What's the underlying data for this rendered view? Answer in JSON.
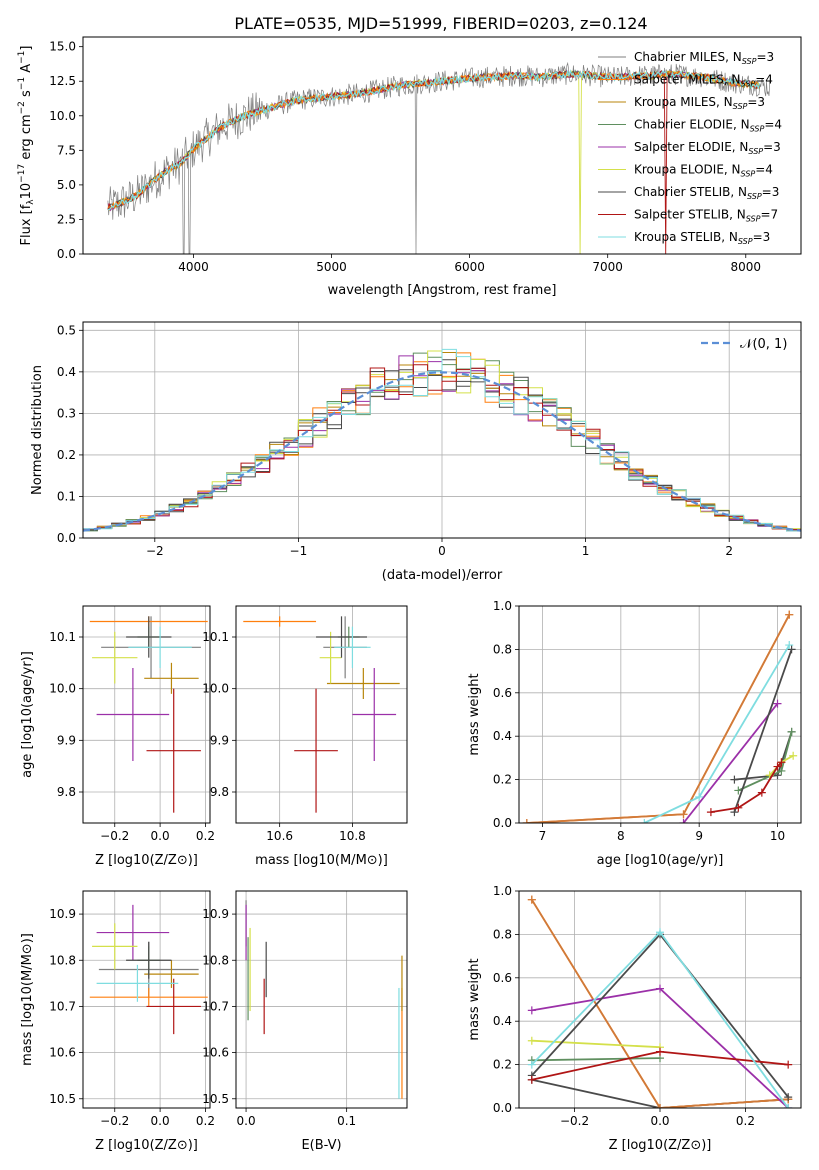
{
  "figure_title": "PLATE=0535, MJD=51999, FIBERID=0203, z=0.124",
  "models": [
    {
      "name": "Chabrier MILES",
      "nssp": "3",
      "color": "#7f7f7f"
    },
    {
      "name": "Salpeter MILES",
      "nssp": "4",
      "color": "#ff7f0e"
    },
    {
      "name": "Kroupa MILES",
      "nssp": "3",
      "color": "#b8860b"
    },
    {
      "name": "Chabrier ELODIE",
      "nssp": "4",
      "color": "#5f8f5f"
    },
    {
      "name": "Salpeter ELODIE",
      "nssp": "3",
      "color": "#9b30a8"
    },
    {
      "name": "Kroupa ELODIE",
      "nssp": "4",
      "color": "#d4e04a"
    },
    {
      "name": "Chabrier STELIB",
      "nssp": "3",
      "color": "#4a4a4a"
    },
    {
      "name": "Salpeter STELIB",
      "nssp": "7",
      "color": "#b01515"
    },
    {
      "name": "Kroupa STELIB",
      "nssp": "3",
      "color": "#7fdde0"
    }
  ],
  "chart_data": [
    {
      "id": "spectrum",
      "type": "line",
      "xlabel": "wavelength [Angstrom, rest frame]",
      "ylabel": "Flux [f_λ 10^-17 erg cm^-2 s^-1 A^-1]",
      "xlim": [
        3200,
        8400
      ],
      "ylim": [
        0,
        15.7
      ],
      "xticks": [
        "4000",
        "5000",
        "6000",
        "7000",
        "8000"
      ],
      "yticks": [
        "0.0",
        "2.5",
        "5.0",
        "7.5",
        "10.0",
        "12.5",
        "15.0"
      ],
      "x": [
        3400,
        3500,
        3600,
        3700,
        3800,
        3900,
        4000,
        4100,
        4200,
        4300,
        4400,
        4500,
        4600,
        4700,
        4800,
        4900,
        5000,
        5100,
        5200,
        5300,
        5400,
        5500,
        5600,
        5700,
        5800,
        5900,
        6000,
        6100,
        6200,
        6300,
        6400,
        6500,
        6600,
        6700,
        6800,
        6900,
        7000,
        7100,
        7200,
        7300,
        7400,
        7500,
        7600,
        7700,
        7800,
        7900,
        8000,
        8100,
        8200
      ],
      "y": [
        3.4,
        3.8,
        4.3,
        5.2,
        6.0,
        6.5,
        7.6,
        8.4,
        9.2,
        9.7,
        10.1,
        10.4,
        10.7,
        11.0,
        11.2,
        11.3,
        11.4,
        11.5,
        11.6,
        11.8,
        12.0,
        12.2,
        12.3,
        12.4,
        12.5,
        12.6,
        12.7,
        12.8,
        12.8,
        12.9,
        12.9,
        12.8,
        12.9,
        13.0,
        13.0,
        12.9,
        12.8,
        12.8,
        12.9,
        12.9,
        13.0,
        13.0,
        12.9,
        12.8,
        12.6,
        12.4,
        12.3,
        12.2,
        12.0
      ]
    },
    {
      "id": "residuals",
      "type": "histogram",
      "xlabel": "(data-model)/error",
      "ylabel": "Normed distribution",
      "xlim": [
        -2.5,
        2.5
      ],
      "ylim": [
        0,
        0.52
      ],
      "xticks": [
        "−2",
        "−1",
        "0",
        "1",
        "2"
      ],
      "yticks": [
        "0.0",
        "0.1",
        "0.2",
        "0.3",
        "0.4",
        "0.5"
      ],
      "bin_width": 0.1,
      "reference": {
        "name": "𝒩(0, 1)",
        "mu": 0,
        "sigma": 1
      }
    },
    {
      "id": "age_vs_Z",
      "type": "errorbar",
      "xlabel": "Z [log10(Z/Z⊙)]",
      "ylabel": "age [log10(age/yr)]",
      "xlim": [
        -0.34,
        0.22
      ],
      "ylim": [
        9.74,
        10.16
      ],
      "xticks": [
        "−0.2",
        "0.0",
        "0.2"
      ],
      "yticks": [
        "9.8",
        "9.9",
        "10.0",
        "10.1"
      ],
      "points": [
        {
          "x": -0.04,
          "y": 10.08,
          "xerr": 0.22,
          "yerr": 0.06
        },
        {
          "x": -0.05,
          "y": 10.13,
          "xerr": 0.26,
          "yerr": 0.01
        },
        {
          "x": 0.05,
          "y": 10.02,
          "xerr": 0.12,
          "yerr": 0.03
        },
        {
          "x": -0.05,
          "y": 10.1,
          "xerr": 0.05,
          "yerr": 0.02
        },
        {
          "x": -0.12,
          "y": 9.95,
          "xerr": 0.16,
          "yerr": 0.09
        },
        {
          "x": -0.2,
          "y": 10.06,
          "xerr": 0.1,
          "yerr": 0.05
        },
        {
          "x": -0.05,
          "y": 10.1,
          "xerr": 0.1,
          "yerr": 0.04
        },
        {
          "x": 0.06,
          "y": 9.88,
          "xerr": 0.12,
          "yerr": 0.12
        },
        {
          "x": 0.0,
          "y": 10.08,
          "xerr": 0.14,
          "yerr": 0.04
        }
      ]
    },
    {
      "id": "age_vs_mass",
      "type": "errorbar",
      "xlabel": "mass [log10(M/M⊙)]",
      "ylabel": "",
      "xlim": [
        10.48,
        10.95
      ],
      "ylim": [
        9.74,
        10.16
      ],
      "xticks": [
        "10.6",
        "10.8"
      ],
      "yticks": [
        "9.8",
        "9.9",
        "10.0",
        "10.1"
      ],
      "points": [
        {
          "x": 10.78,
          "y": 10.08,
          "xerr": 0.06,
          "yerr": 0.06
        },
        {
          "x": 10.6,
          "y": 10.13,
          "xerr": 0.1,
          "yerr": 0.01
        },
        {
          "x": 10.83,
          "y": 10.01,
          "xerr": 0.1,
          "yerr": 0.03
        },
        {
          "x": 10.79,
          "y": 10.1,
          "xerr": 0.03,
          "yerr": 0.02
        },
        {
          "x": 10.86,
          "y": 9.95,
          "xerr": 0.06,
          "yerr": 0.09
        },
        {
          "x": 10.74,
          "y": 10.06,
          "xerr": 0.03,
          "yerr": 0.05
        },
        {
          "x": 10.77,
          "y": 10.1,
          "xerr": 0.07,
          "yerr": 0.04
        },
        {
          "x": 10.7,
          "y": 9.88,
          "xerr": 0.06,
          "yerr": 0.12
        },
        {
          "x": 10.8,
          "y": 10.08,
          "xerr": 0.05,
          "yerr": 0.04
        }
      ]
    },
    {
      "id": "weight_vs_age",
      "type": "line",
      "xlabel": "age [log10(age/yr)]",
      "ylabel": "mass weight",
      "xlim": [
        6.7,
        10.3
      ],
      "ylim": [
        0,
        1
      ],
      "xticks": [
        "7",
        "8",
        "9",
        "10"
      ],
      "yticks": [
        "0.0",
        "0.2",
        "0.4",
        "0.6",
        "0.8",
        "1.0"
      ],
      "series": [
        {
          "x": [
            9.45,
            10.0,
            10.18
          ],
          "y": [
            0.2,
            0.22,
            0.42
          ]
        },
        {
          "x": [
            6.8,
            8.8,
            10.15
          ],
          "y": [
            0.0,
            0.04,
            0.96
          ]
        },
        {
          "x": [
            6.8,
            8.8,
            10.15
          ],
          "y": [
            0.0,
            0.04,
            0.96
          ]
        },
        {
          "x": [
            9.5,
            10.05,
            10.18
          ],
          "y": [
            0.15,
            0.24,
            0.42
          ]
        },
        {
          "x": [
            8.8,
            10.0
          ],
          "y": [
            0.0,
            0.55
          ]
        },
        {
          "x": [
            9.9,
            10.05,
            10.2
          ],
          "y": [
            0.22,
            0.28,
            0.31
          ]
        },
        {
          "x": [
            9.45,
            10.18
          ],
          "y": [
            0.05,
            0.8
          ]
        },
        {
          "x": [
            9.15,
            9.5,
            9.8,
            10.0,
            10.05
          ],
          "y": [
            0.05,
            0.07,
            0.14,
            0.26,
            0.28
          ]
        },
        {
          "x": [
            8.3,
            9.0,
            10.15
          ],
          "y": [
            0.0,
            0.12,
            0.82
          ]
        }
      ]
    },
    {
      "id": "mass_vs_Z",
      "type": "errorbar",
      "xlabel": "Z [log10(Z/Z⊙)]",
      "ylabel": "mass [log10(M/M⊙)]",
      "xlim": [
        -0.34,
        0.22
      ],
      "ylim": [
        10.48,
        10.95
      ],
      "xticks": [
        "−0.2",
        "0.0",
        "0.2"
      ],
      "yticks": [
        "10.5",
        "10.6",
        "10.7",
        "10.8",
        "10.9"
      ],
      "points": [
        {
          "x": -0.05,
          "y": 10.78,
          "xerr": 0.22,
          "yerr": 0.06
        },
        {
          "x": -0.05,
          "y": 10.72,
          "xerr": 0.26,
          "yerr": 0.02
        },
        {
          "x": 0.05,
          "y": 10.77,
          "xerr": 0.12,
          "yerr": 0.03
        },
        {
          "x": -0.05,
          "y": 10.8,
          "xerr": 0.05,
          "yerr": 0.03
        },
        {
          "x": -0.12,
          "y": 10.86,
          "xerr": 0.16,
          "yerr": 0.06
        },
        {
          "x": -0.2,
          "y": 10.83,
          "xerr": 0.1,
          "yerr": 0.05
        },
        {
          "x": -0.05,
          "y": 10.8,
          "xerr": 0.1,
          "yerr": 0.04
        },
        {
          "x": 0.06,
          "y": 10.7,
          "xerr": 0.12,
          "yerr": 0.06
        },
        {
          "x": -0.1,
          "y": 10.75,
          "xerr": 0.18,
          "yerr": 0.04
        }
      ]
    },
    {
      "id": "mass_vs_ebv",
      "type": "errorbar",
      "xlabel": "E(B-V)",
      "ylabel": "",
      "xlim": [
        -0.01,
        0.16
      ],
      "ylim": [
        10.48,
        10.95
      ],
      "xticks": [
        "0.0",
        "0.1"
      ],
      "yticks": [
        "10.5",
        "10.6",
        "10.7",
        "10.8",
        "10.9"
      ],
      "points": [
        {
          "x": 0.0,
          "y": 10.88,
          "xerr": 0.0,
          "yerr": 0.05
        },
        {
          "x": 0.155,
          "y": 10.62,
          "xerr": 0.0,
          "yerr": 0.12
        },
        {
          "x": 0.155,
          "y": 10.75,
          "xerr": 0.0,
          "yerr": 0.06
        },
        {
          "x": 0.002,
          "y": 10.76,
          "xerr": 0.0,
          "yerr": 0.09
        },
        {
          "x": 0.0,
          "y": 10.86,
          "xerr": 0.0,
          "yerr": 0.06
        },
        {
          "x": 0.004,
          "y": 10.78,
          "xerr": 0.0,
          "yerr": 0.09
        },
        {
          "x": 0.02,
          "y": 10.78,
          "xerr": 0.0,
          "yerr": 0.06
        },
        {
          "x": 0.018,
          "y": 10.7,
          "xerr": 0.0,
          "yerr": 0.06
        },
        {
          "x": 0.152,
          "y": 10.62,
          "xerr": 0.0,
          "yerr": 0.12
        }
      ]
    },
    {
      "id": "weight_vs_Z",
      "type": "line",
      "xlabel": "Z [log10(Z/Z⊙)]",
      "ylabel": "mass weight",
      "xlim": [
        -0.33,
        0.33
      ],
      "ylim": [
        0,
        1
      ],
      "xticks": [
        "−0.2",
        "0.0",
        "0.2"
      ],
      "yticks": [
        "0.0",
        "0.2",
        "0.4",
        "0.6",
        "0.8",
        "1.0"
      ],
      "series": [
        {
          "x": [
            -0.3,
            0.0,
            0.3
          ],
          "y": [
            0.13,
            0.0,
            0.04
          ]
        },
        {
          "x": [
            -0.3,
            0.0,
            0.3
          ],
          "y": [
            0.96,
            0.0,
            0.04
          ]
        },
        {
          "x": [
            -0.3,
            0.0,
            0.3
          ],
          "y": [
            0.96,
            0.0,
            0.04
          ]
        },
        {
          "x": [
            -0.3,
            0.0
          ],
          "y": [
            0.22,
            0.23
          ]
        },
        {
          "x": [
            -0.3,
            0.0,
            0.3
          ],
          "y": [
            0.45,
            0.55,
            0.0
          ]
        },
        {
          "x": [
            -0.3,
            0.0
          ],
          "y": [
            0.31,
            0.28
          ]
        },
        {
          "x": [
            -0.3,
            0.0,
            0.3
          ],
          "y": [
            0.15,
            0.8,
            0.05
          ]
        },
        {
          "x": [
            -0.3,
            0.0,
            0.3
          ],
          "y": [
            0.13,
            0.26,
            0.2
          ]
        },
        {
          "x": [
            -0.3,
            0.0,
            0.3
          ],
          "y": [
            0.2,
            0.81,
            0.0
          ]
        }
      ]
    }
  ]
}
